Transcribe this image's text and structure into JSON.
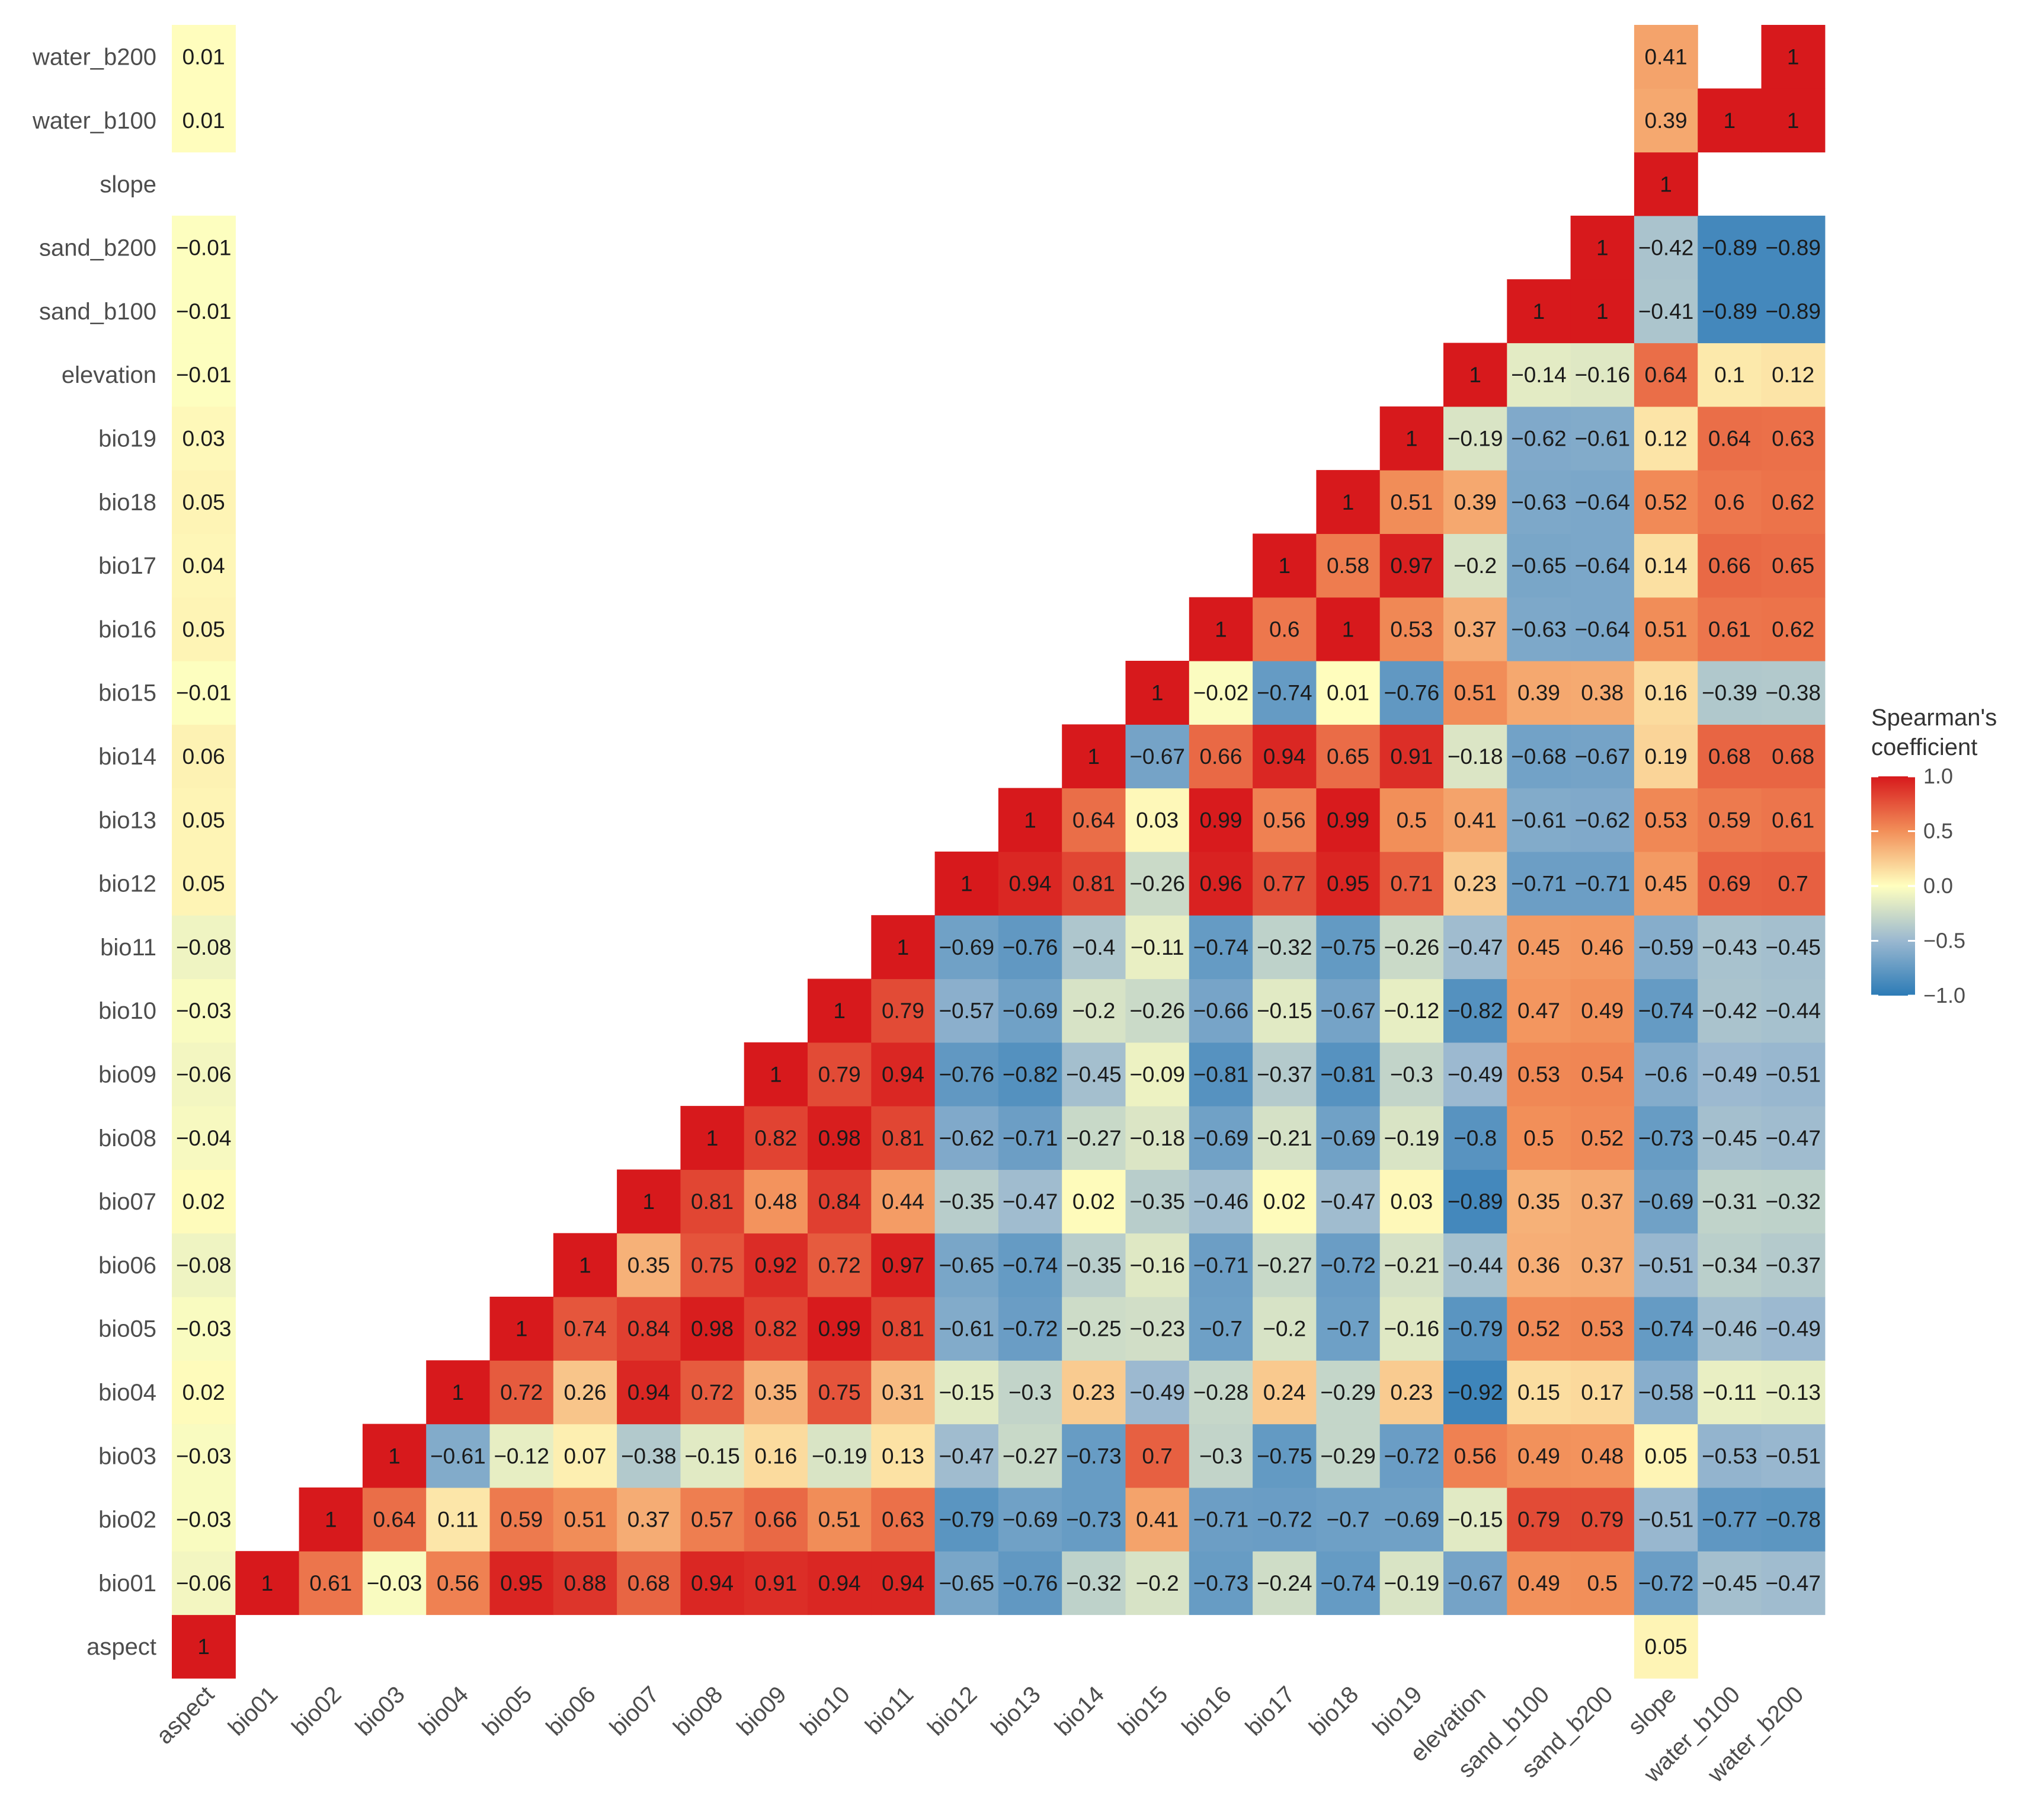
{
  "chart_data": {
    "type": "heatmap",
    "title": "",
    "xlabel": "",
    "ylabel": "",
    "variables": [
      "aspect",
      "bio01",
      "bio02",
      "bio03",
      "bio04",
      "bio05",
      "bio06",
      "bio07",
      "bio08",
      "bio09",
      "bio10",
      "bio11",
      "bio12",
      "bio13",
      "bio14",
      "bio15",
      "bio16",
      "bio17",
      "bio18",
      "bio19",
      "elevation",
      "sand_b100",
      "sand_b200",
      "slope",
      "water_b100",
      "water_b200"
    ],
    "legend": {
      "title_line1": "Spearman's",
      "title_line2": "coefficient",
      "ticks": [
        "1.0",
        "0.5",
        "0.0",
        "−0.5",
        "−1.0"
      ],
      "range": [
        -1,
        1
      ],
      "colors": {
        "high": "#d7191c",
        "mid_high": "#f28f59",
        "mid": "#ffffbf",
        "mid_low": "#9ab8d0",
        "low": "#2c7bb6"
      }
    },
    "rows": {
      "aspect": {
        "aspect": "1",
        "slope": "0.05"
      },
      "bio01": {
        "aspect": "−0.06",
        "bio01": "1",
        "bio02": "0.61",
        "bio03": "−0.03",
        "bio04": "0.56",
        "bio05": "0.95",
        "bio06": "0.88",
        "bio07": "0.68",
        "bio08": "0.94",
        "bio09": "0.91",
        "bio10": "0.94",
        "bio11": "0.94",
        "bio12": "−0.65",
        "bio13": "−0.76",
        "bio14": "−0.32",
        "bio15": "−0.2",
        "bio16": "−0.73",
        "bio17": "−0.24",
        "bio18": "−0.74",
        "bio19": "−0.19",
        "elevation": "−0.67",
        "sand_b100": "0.49",
        "sand_b200": "0.5",
        "slope": "−0.72",
        "water_b100": "−0.45",
        "water_b200": "−0.47"
      },
      "bio02": {
        "aspect": "−0.03",
        "bio02": "1",
        "bio03": "0.64",
        "bio04": "0.11",
        "bio05": "0.59",
        "bio06": "0.51",
        "bio07": "0.37",
        "bio08": "0.57",
        "bio09": "0.66",
        "bio10": "0.51",
        "bio11": "0.63",
        "bio12": "−0.79",
        "bio13": "−0.69",
        "bio14": "−0.73",
        "bio15": "0.41",
        "bio16": "−0.71",
        "bio17": "−0.72",
        "bio18": "−0.7",
        "bio19": "−0.69",
        "elevation": "−0.15",
        "sand_b100": "0.79",
        "sand_b200": "0.79",
        "slope": "−0.51",
        "water_b100": "−0.77",
        "water_b200": "−0.78"
      },
      "bio03": {
        "aspect": "−0.03",
        "bio03": "1",
        "bio04": "−0.61",
        "bio05": "−0.12",
        "bio06": "0.07",
        "bio07": "−0.38",
        "bio08": "−0.15",
        "bio09": "0.16",
        "bio10": "−0.19",
        "bio11": "0.13",
        "bio12": "−0.47",
        "bio13": "−0.27",
        "bio14": "−0.73",
        "bio15": "0.7",
        "bio16": "−0.3",
        "bio17": "−0.75",
        "bio18": "−0.29",
        "bio19": "−0.72",
        "elevation": "0.56",
        "sand_b100": "0.49",
        "sand_b200": "0.48",
        "slope": "0.05",
        "water_b100": "−0.53",
        "water_b200": "−0.51"
      },
      "bio04": {
        "aspect": "0.02",
        "bio04": "1",
        "bio05": "0.72",
        "bio06": "0.26",
        "bio07": "0.94",
        "bio08": "0.72",
        "bio09": "0.35",
        "bio10": "0.75",
        "bio11": "0.31",
        "bio12": "−0.15",
        "bio13": "−0.3",
        "bio14": "0.23",
        "bio15": "−0.49",
        "bio16": "−0.28",
        "bio17": "0.24",
        "bio18": "−0.29",
        "bio19": "0.23",
        "elevation": "−0.92",
        "sand_b100": "0.15",
        "sand_b200": "0.17",
        "slope": "−0.58",
        "water_b100": "−0.11",
        "water_b200": "−0.13"
      },
      "bio05": {
        "aspect": "−0.03",
        "bio05": "1",
        "bio06": "0.74",
        "bio07": "0.84",
        "bio08": "0.98",
        "bio09": "0.82",
        "bio10": "0.99",
        "bio11": "0.81",
        "bio12": "−0.61",
        "bio13": "−0.72",
        "bio14": "−0.25",
        "bio15": "−0.23",
        "bio16": "−0.7",
        "bio17": "−0.2",
        "bio18": "−0.7",
        "bio19": "−0.16",
        "elevation": "−0.79",
        "sand_b100": "0.52",
        "sand_b200": "0.53",
        "slope": "−0.74",
        "water_b100": "−0.46",
        "water_b200": "−0.49"
      },
      "bio06": {
        "aspect": "−0.08",
        "bio06": "1",
        "bio07": "0.35",
        "bio08": "0.75",
        "bio09": "0.92",
        "bio10": "0.72",
        "bio11": "0.97",
        "bio12": "−0.65",
        "bio13": "−0.74",
        "bio14": "−0.35",
        "bio15": "−0.16",
        "bio16": "−0.71",
        "bio17": "−0.27",
        "bio18": "−0.72",
        "bio19": "−0.21",
        "elevation": "−0.44",
        "sand_b100": "0.36",
        "sand_b200": "0.37",
        "slope": "−0.51",
        "water_b100": "−0.34",
        "water_b200": "−0.37"
      },
      "bio07": {
        "aspect": "0.02",
        "bio07": "1",
        "bio08": "0.81",
        "bio09": "0.48",
        "bio10": "0.84",
        "bio11": "0.44",
        "bio12": "−0.35",
        "bio13": "−0.47",
        "bio14": "0.02",
        "bio15": "−0.35",
        "bio16": "−0.46",
        "bio17": "0.02",
        "bio18": "−0.47",
        "bio19": "0.03",
        "elevation": "−0.89",
        "sand_b100": "0.35",
        "sand_b200": "0.37",
        "slope": "−0.69",
        "water_b100": "−0.31",
        "water_b200": "−0.32"
      },
      "bio08": {
        "aspect": "−0.04",
        "bio08": "1",
        "bio09": "0.82",
        "bio10": "0.98",
        "bio11": "0.81",
        "bio12": "−0.62",
        "bio13": "−0.71",
        "bio14": "−0.27",
        "bio15": "−0.18",
        "bio16": "−0.69",
        "bio17": "−0.21",
        "bio18": "−0.69",
        "bio19": "−0.19",
        "elevation": "−0.8",
        "sand_b100": "0.5",
        "sand_b200": "0.52",
        "slope": "−0.73",
        "water_b100": "−0.45",
        "water_b200": "−0.47"
      },
      "bio09": {
        "aspect": "−0.06",
        "bio09": "1",
        "bio10": "0.79",
        "bio11": "0.94",
        "bio12": "−0.76",
        "bio13": "−0.82",
        "bio14": "−0.45",
        "bio15": "−0.09",
        "bio16": "−0.81",
        "bio17": "−0.37",
        "bio18": "−0.81",
        "bio19": "−0.3",
        "elevation": "−0.49",
        "sand_b100": "0.53",
        "sand_b200": "0.54",
        "slope": "−0.6",
        "water_b100": "−0.49",
        "water_b200": "−0.51"
      },
      "bio10": {
        "aspect": "−0.03",
        "bio10": "1",
        "bio11": "0.79",
        "bio12": "−0.57",
        "bio13": "−0.69",
        "bio14": "−0.2",
        "bio15": "−0.26",
        "bio16": "−0.66",
        "bio17": "−0.15",
        "bio18": "−0.67",
        "bio19": "−0.12",
        "elevation": "−0.82",
        "sand_b100": "0.47",
        "sand_b200": "0.49",
        "slope": "−0.74",
        "water_b100": "−0.42",
        "water_b200": "−0.44"
      },
      "bio11": {
        "aspect": "−0.08",
        "bio11": "1",
        "bio12": "−0.69",
        "bio13": "−0.76",
        "bio14": "−0.4",
        "bio15": "−0.11",
        "bio16": "−0.74",
        "bio17": "−0.32",
        "bio18": "−0.75",
        "bio19": "−0.26",
        "elevation": "−0.47",
        "sand_b100": "0.45",
        "sand_b200": "0.46",
        "slope": "−0.59",
        "water_b100": "−0.43",
        "water_b200": "−0.45"
      },
      "bio12": {
        "aspect": "0.05",
        "bio12": "1",
        "bio13": "0.94",
        "bio14": "0.81",
        "bio15": "−0.26",
        "bio16": "0.96",
        "bio17": "0.77",
        "bio18": "0.95",
        "bio19": "0.71",
        "elevation": "0.23",
        "sand_b100": "−0.71",
        "sand_b200": "−0.71",
        "slope": "0.45",
        "water_b100": "0.69",
        "water_b200": "0.7"
      },
      "bio13": {
        "aspect": "0.05",
        "bio13": "1",
        "bio14": "0.64",
        "bio15": "0.03",
        "bio16": "0.99",
        "bio17": "0.56",
        "bio18": "0.99",
        "bio19": "0.5",
        "elevation": "0.41",
        "sand_b100": "−0.61",
        "sand_b200": "−0.62",
        "slope": "0.53",
        "water_b100": "0.59",
        "water_b200": "0.61"
      },
      "bio14": {
        "aspect": "0.06",
        "bio14": "1",
        "bio15": "−0.67",
        "bio16": "0.66",
        "bio17": "0.94",
        "bio18": "0.65",
        "bio19": "0.91",
        "elevation": "−0.18",
        "sand_b100": "−0.68",
        "sand_b200": "−0.67",
        "slope": "0.19",
        "water_b100": "0.68",
        "water_b200": "0.68"
      },
      "bio15": {
        "aspect": "−0.01",
        "bio15": "1",
        "bio16": "−0.02",
        "bio17": "−0.74",
        "bio18": "0.01",
        "bio19": "−0.76",
        "elevation": "0.51",
        "sand_b100": "0.39",
        "sand_b200": "0.38",
        "slope": "0.16",
        "water_b100": "−0.39",
        "water_b200": "−0.38"
      },
      "bio16": {
        "aspect": "0.05",
        "bio16": "1",
        "bio17": "0.6",
        "bio18": "1",
        "bio19": "0.53",
        "elevation": "0.37",
        "sand_b100": "−0.63",
        "sand_b200": "−0.64",
        "slope": "0.51",
        "water_b100": "0.61",
        "water_b200": "0.62"
      },
      "bio17": {
        "aspect": "0.04",
        "bio17": "1",
        "bio18": "0.58",
        "bio19": "0.97",
        "elevation": "−0.2",
        "sand_b100": "−0.65",
        "sand_b200": "−0.64",
        "slope": "0.14",
        "water_b100": "0.66",
        "water_b200": "0.65"
      },
      "bio18": {
        "aspect": "0.05",
        "bio18": "1",
        "bio19": "0.51",
        "elevation": "0.39",
        "sand_b100": "−0.63",
        "sand_b200": "−0.64",
        "slope": "0.52",
        "water_b100": "0.6",
        "water_b200": "0.62"
      },
      "bio19": {
        "aspect": "0.03",
        "bio19": "1",
        "elevation": "−0.19",
        "sand_b100": "−0.62",
        "sand_b200": "−0.61",
        "slope": "0.12",
        "water_b100": "0.64",
        "water_b200": "0.63"
      },
      "elevation": {
        "aspect": "−0.01",
        "elevation": "1",
        "sand_b100": "−0.14",
        "sand_b200": "−0.16",
        "slope": "0.64",
        "water_b100": "0.1",
        "water_b200": "0.12"
      },
      "sand_b100": {
        "aspect": "−0.01",
        "sand_b100": "1",
        "sand_b200": "1",
        "slope": "−0.41",
        "water_b100": "−0.89",
        "water_b200": "−0.89"
      },
      "sand_b200": {
        "aspect": "−0.01",
        "sand_b200": "1",
        "slope": "−0.42",
        "water_b100": "−0.89",
        "water_b200": "−0.89"
      },
      "slope": {
        "slope": "1"
      },
      "water_b100": {
        "aspect": "0.01",
        "slope": "0.39",
        "water_b100": "1",
        "water_b200": "1"
      },
      "water_b200": {
        "aspect": "0.01",
        "slope": "0.41",
        "water_b200": "1"
      }
    }
  }
}
